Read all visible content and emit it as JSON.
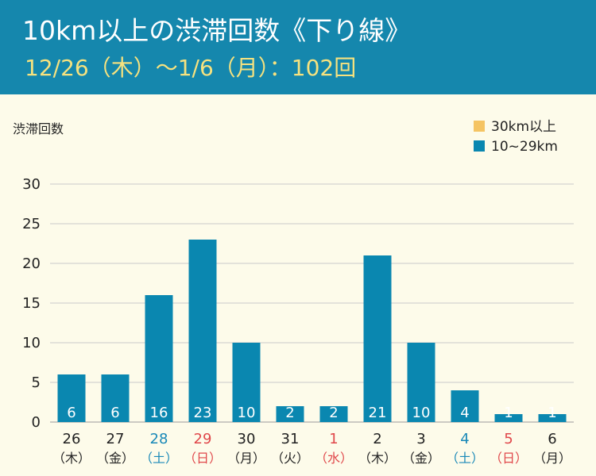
{
  "header": {
    "title": "10km以上の渋滞回数《下り線》",
    "subtitle": "12/26（木）～1/6（月）：102回"
  },
  "colors": {
    "header_bg": "#1587ad",
    "subtitle": "#f6e27f",
    "background": "#fdfbea",
    "bar": "#0a87b0",
    "legend_30": "#f5c463",
    "saturday": "#1a89b8",
    "sunday": "#e0474a",
    "text": "#222222"
  },
  "chart_data": {
    "type": "bar",
    "ylabel": "渋滞回数",
    "ylim": [
      0,
      30
    ],
    "yticks": [
      0,
      5,
      10,
      15,
      20,
      25,
      30
    ],
    "legend_position": "top-right",
    "legend": [
      {
        "label": "30km以上",
        "color": "#f5c463"
      },
      {
        "label": "10~29km",
        "color": "#0a87b0"
      }
    ],
    "categories": [
      {
        "date": "26",
        "day": "（木）",
        "kind": "weekday"
      },
      {
        "date": "27",
        "day": "（金）",
        "kind": "weekday"
      },
      {
        "date": "28",
        "day": "（土）",
        "kind": "saturday"
      },
      {
        "date": "29",
        "day": "（日）",
        "kind": "sunday"
      },
      {
        "date": "30",
        "day": "（月）",
        "kind": "weekday"
      },
      {
        "date": "31",
        "day": "（火）",
        "kind": "weekday"
      },
      {
        "date": "1",
        "day": "（水）",
        "kind": "sunday"
      },
      {
        "date": "2",
        "day": "（木）",
        "kind": "weekday"
      },
      {
        "date": "3",
        "day": "（金）",
        "kind": "weekday"
      },
      {
        "date": "4",
        "day": "（土）",
        "kind": "saturday"
      },
      {
        "date": "5",
        "day": "（日）",
        "kind": "sunday"
      },
      {
        "date": "6",
        "day": "（月）",
        "kind": "weekday"
      }
    ],
    "series": [
      {
        "name": "10~29km",
        "values": [
          6,
          6,
          16,
          23,
          10,
          2,
          2,
          21,
          10,
          4,
          1,
          1
        ]
      },
      {
        "name": "30km以上",
        "values": [
          0,
          0,
          0,
          0,
          0,
          0,
          0,
          0,
          0,
          0,
          0,
          0
        ]
      }
    ]
  }
}
